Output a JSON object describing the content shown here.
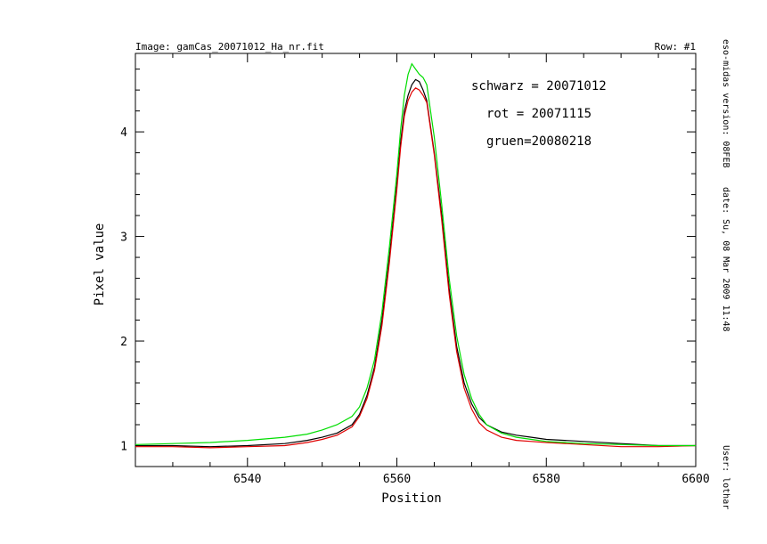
{
  "header": {
    "image_label": "Image: gamCas_20071012_Ha_nr.fit",
    "row_label": "Row: #1"
  },
  "side": {
    "version": "eso-midas version: 08FEB",
    "date": "date: Su, 08 Mar 2009 11:48",
    "user": "User: lothar"
  },
  "chart_data": {
    "type": "line",
    "xlabel": "Position",
    "ylabel": "Pixel value",
    "xlim": [
      6525,
      6600
    ],
    "ylim": [
      0.8,
      4.75
    ],
    "xticks": [
      6540,
      6560,
      6580,
      6600
    ],
    "yticks": [
      1,
      2,
      3,
      4
    ],
    "grid": false,
    "annotations": [
      {
        "text": "schwarz = 20071012",
        "color": "#e00000"
      },
      {
        "text": "rot = 20071115",
        "color": "#e00000"
      },
      {
        "text": "gruen=20080218",
        "color": "#00dd00"
      }
    ],
    "series": [
      {
        "color": "#000000",
        "x": [
          6525,
          6530,
          6535,
          6540,
          6545,
          6548,
          6550,
          6552,
          6554,
          6555,
          6556,
          6557,
          6558,
          6559,
          6560,
          6560.5,
          6561,
          6561.5,
          6562,
          6562.5,
          6563,
          6563.5,
          6564,
          6565,
          6566,
          6567,
          6568,
          6569,
          6570,
          6571,
          6572,
          6574,
          6576,
          6578,
          6580,
          6585,
          6590,
          6595,
          6600
        ],
        "y": [
          1.0,
          1.0,
          0.99,
          1.0,
          1.02,
          1.05,
          1.08,
          1.12,
          1.2,
          1.3,
          1.48,
          1.75,
          2.2,
          2.8,
          3.5,
          3.9,
          4.2,
          4.35,
          4.45,
          4.5,
          4.48,
          4.4,
          4.3,
          3.8,
          3.2,
          2.5,
          1.95,
          1.6,
          1.4,
          1.27,
          1.2,
          1.13,
          1.1,
          1.08,
          1.06,
          1.04,
          1.02,
          1.0,
          1.0
        ]
      },
      {
        "color": "#e00000",
        "x": [
          6525,
          6530,
          6535,
          6540,
          6545,
          6548,
          6550,
          6552,
          6554,
          6555,
          6556,
          6557,
          6558,
          6559,
          6560,
          6560.5,
          6561,
          6561.5,
          6562,
          6562.5,
          6563,
          6563.5,
          6564,
          6565,
          6566,
          6567,
          6568,
          6569,
          6570,
          6571,
          6572,
          6574,
          6576,
          6578,
          6580,
          6585,
          6590,
          6595,
          6600
        ],
        "y": [
          0.99,
          0.99,
          0.98,
          0.99,
          1.0,
          1.03,
          1.06,
          1.1,
          1.18,
          1.28,
          1.45,
          1.72,
          2.15,
          2.75,
          3.45,
          3.85,
          4.15,
          4.3,
          4.38,
          4.42,
          4.4,
          4.35,
          4.28,
          3.78,
          3.15,
          2.45,
          1.9,
          1.55,
          1.35,
          1.22,
          1.15,
          1.08,
          1.05,
          1.04,
          1.03,
          1.01,
          0.99,
          0.99,
          1.0
        ]
      },
      {
        "color": "#00dd00",
        "x": [
          6525,
          6530,
          6535,
          6540,
          6545,
          6548,
          6550,
          6552,
          6554,
          6555,
          6556,
          6557,
          6558,
          6559,
          6560,
          6560.5,
          6561,
          6561.5,
          6562,
          6562.5,
          6563,
          6563.5,
          6564,
          6565,
          6566,
          6567,
          6568,
          6569,
          6570,
          6571,
          6572,
          6574,
          6576,
          6578,
          6580,
          6585,
          6590,
          6595,
          6600
        ],
        "y": [
          1.01,
          1.02,
          1.03,
          1.05,
          1.08,
          1.11,
          1.15,
          1.2,
          1.28,
          1.37,
          1.55,
          1.82,
          2.28,
          2.9,
          3.6,
          4.02,
          4.35,
          4.55,
          4.65,
          4.6,
          4.55,
          4.52,
          4.45,
          3.95,
          3.3,
          2.6,
          2.05,
          1.68,
          1.45,
          1.3,
          1.2,
          1.12,
          1.08,
          1.06,
          1.04,
          1.02,
          1.01,
          1.0,
          1.0
        ]
      }
    ]
  }
}
